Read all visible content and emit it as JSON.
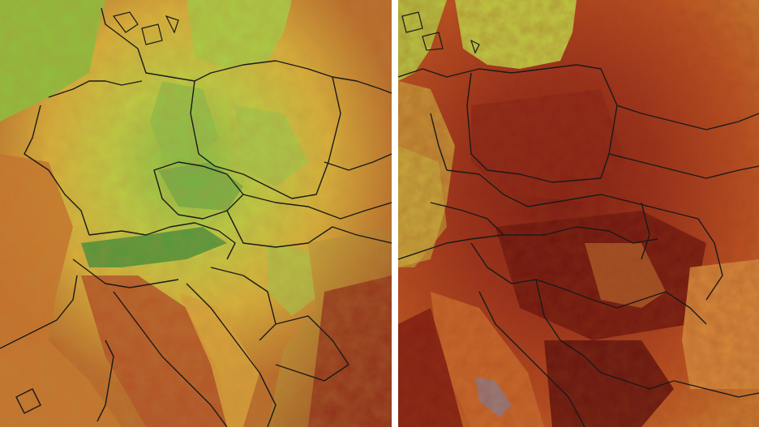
{
  "figure": {
    "panels": [
      {
        "id": "left",
        "palette": "cooler",
        "colors": [
          "#9ec34a",
          "#d9d23f",
          "#c8892c",
          "#8e2a18"
        ]
      },
      {
        "id": "right",
        "palette": "hotter",
        "colors": [
          "#c7c63c",
          "#b94d22",
          "#7e1c10",
          "#5a0f0a"
        ]
      }
    ],
    "borders_color": "#1a1a1a",
    "water_color_left": "#a6c94a",
    "water_color_right": "#b8c842"
  }
}
